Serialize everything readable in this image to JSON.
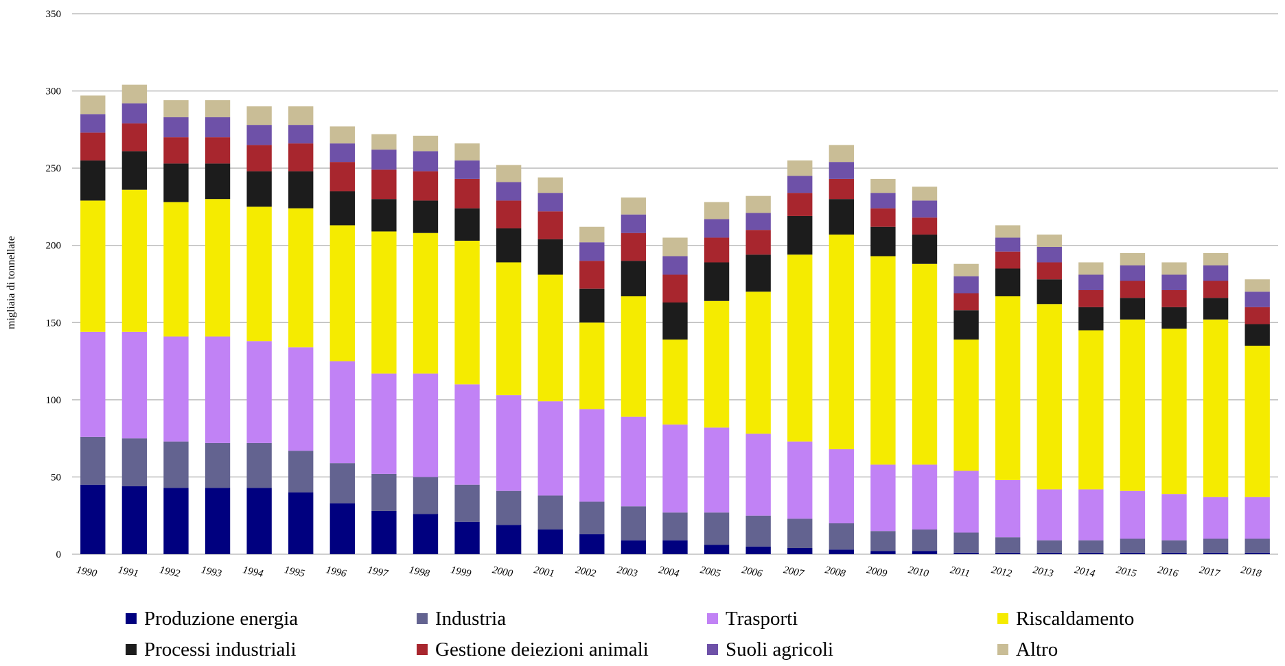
{
  "chart_data": {
    "type": "bar",
    "stacked": true,
    "title": "",
    "xlabel": "",
    "ylabel": "migliaia di tonnellate",
    "ylim": [
      0,
      350
    ],
    "yticks": [
      0,
      50,
      100,
      150,
      200,
      250,
      300,
      350
    ],
    "grid": true,
    "legend_position": "bottom",
    "categories": [
      "1990",
      "1991",
      "1992",
      "1993",
      "1994",
      "1995",
      "1996",
      "1997",
      "1998",
      "1999",
      "2000",
      "2001",
      "2002",
      "2003",
      "2004",
      "2005",
      "2006",
      "2007",
      "2008",
      "2009",
      "2010",
      "2011",
      "2012",
      "2013",
      "2014",
      "2015",
      "2016",
      "2017",
      "2018"
    ],
    "series": [
      {
        "name": "Produzione energia",
        "color": "#00007f",
        "values": [
          45,
          44,
          43,
          43,
          43,
          40,
          33,
          28,
          26,
          21,
          19,
          16,
          13,
          9,
          9,
          6,
          5,
          4,
          3,
          2,
          2,
          1,
          1,
          1,
          1,
          1,
          1,
          1,
          1
        ]
      },
      {
        "name": "Industria",
        "color": "#636390",
        "values": [
          31,
          31,
          30,
          29,
          29,
          27,
          26,
          24,
          24,
          24,
          22,
          22,
          21,
          22,
          18,
          21,
          20,
          19,
          17,
          13,
          14,
          13,
          10,
          8,
          8,
          9,
          8,
          9,
          9
        ]
      },
      {
        "name": "Trasporti",
        "color": "#c182f5",
        "values": [
          68,
          69,
          68,
          69,
          66,
          67,
          66,
          65,
          67,
          65,
          62,
          61,
          60,
          58,
          57,
          55,
          53,
          50,
          48,
          43,
          42,
          40,
          37,
          33,
          33,
          31,
          30,
          27,
          27
        ]
      },
      {
        "name": "Riscaldamento",
        "color": "#f5eb00",
        "values": [
          85,
          92,
          87,
          89,
          87,
          90,
          88,
          92,
          91,
          93,
          86,
          82,
          56,
          78,
          55,
          82,
          92,
          121,
          139,
          135,
          130,
          85,
          119,
          120,
          103,
          111,
          107,
          115,
          98
        ]
      },
      {
        "name": "Processi industriali",
        "color": "#1c1c1c",
        "values": [
          26,
          25,
          25,
          23,
          23,
          24,
          22,
          21,
          21,
          21,
          22,
          23,
          22,
          23,
          24,
          25,
          24,
          25,
          23,
          19,
          19,
          19,
          18,
          16,
          15,
          14,
          14,
          14,
          14
        ]
      },
      {
        "name": "Gestione deiezioni animali",
        "color": "#a8262e",
        "values": [
          18,
          18,
          17,
          17,
          17,
          18,
          19,
          19,
          19,
          19,
          18,
          18,
          18,
          18,
          18,
          16,
          16,
          15,
          13,
          12,
          11,
          11,
          11,
          11,
          11,
          11,
          11,
          11,
          11
        ]
      },
      {
        "name": "Suoli agricoli",
        "color": "#6e51a8",
        "values": [
          12,
          13,
          13,
          13,
          13,
          12,
          12,
          13,
          13,
          12,
          12,
          12,
          12,
          12,
          12,
          12,
          11,
          11,
          11,
          10,
          11,
          11,
          9,
          10,
          10,
          10,
          10,
          10,
          10
        ]
      },
      {
        "name": "Altro",
        "color": "#c9bd96",
        "values": [
          12,
          12,
          11,
          11,
          12,
          12,
          11,
          10,
          10,
          11,
          11,
          10,
          10,
          11,
          12,
          11,
          11,
          10,
          11,
          9,
          9,
          8,
          8,
          8,
          8,
          8,
          8,
          8,
          8
        ]
      }
    ]
  }
}
